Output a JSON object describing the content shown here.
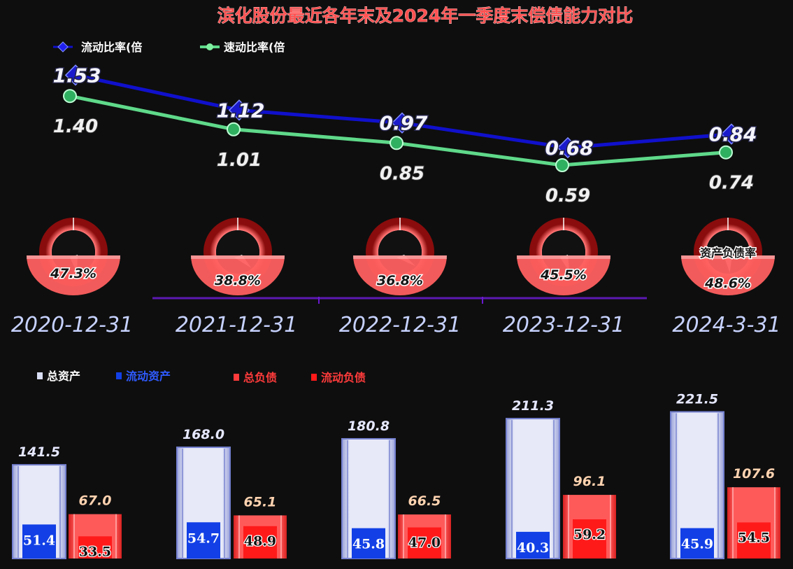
{
  "title": "滨化股份最近各年末及2024年一季度末偿债能力对比",
  "colors": {
    "current_ratio": "#1010cc",
    "quick_ratio": "#5fd98a",
    "total_assets": "#d9ddf3",
    "current_assets": "#1240e6",
    "total_liabilities": "#ff4a4a",
    "current_liabilities": "#ff1a1a",
    "gauge": "#ff5a5a"
  },
  "chart_data": [
    {
      "type": "line",
      "categories": [
        "2020-12-31",
        "2021-12-31",
        "2022-12-31",
        "2023-12-31",
        "2024-3-31"
      ],
      "series": [
        {
          "name": "流动比率(倍",
          "values": [
            1.53,
            1.12,
            0.97,
            0.68,
            0.84
          ]
        },
        {
          "name": "速动比率(倍",
          "values": [
            1.4,
            1.01,
            0.85,
            0.59,
            0.74
          ]
        }
      ]
    },
    {
      "type": "pie",
      "label": "资产负债率",
      "categories": [
        "2020-12-31",
        "2021-12-31",
        "2022-12-31",
        "2023-12-31",
        "2024-3-31"
      ],
      "values": [
        "47.3%",
        "38.8%",
        "36.8%",
        "45.5%",
        "48.6%"
      ],
      "fractions": [
        0.473,
        0.388,
        0.368,
        0.455,
        0.486
      ]
    },
    {
      "type": "bar",
      "categories": [
        "2020-12-31",
        "2021-12-31",
        "2022-12-31",
        "2023-12-31",
        "2024-3-31"
      ],
      "series": [
        {
          "name": "总资产",
          "values": [
            141.5,
            168.0,
            180.8,
            211.3,
            221.5
          ]
        },
        {
          "name": "流动资产",
          "values": [
            51.4,
            54.7,
            45.8,
            40.3,
            45.9
          ]
        },
        {
          "name": "总负债",
          "values": [
            67.0,
            65.1,
            66.5,
            96.1,
            107.6
          ]
        },
        {
          "name": "流动负债",
          "values": [
            33.5,
            48.9,
            47.0,
            59.2,
            54.5
          ]
        }
      ]
    }
  ],
  "labels": {
    "line_current": [
      "1.53",
      "1.12",
      "0.97",
      "0.68",
      "0.84"
    ],
    "line_quick": [
      "1.40",
      "1.01",
      "0.85",
      "0.59",
      "0.74"
    ],
    "total_assets": [
      "141.5",
      "168.0",
      "180.8",
      "211.3",
      "221.5"
    ],
    "current_assets": [
      "51.4",
      "54.7",
      "45.8",
      "40.3",
      "45.9"
    ],
    "total_liabilities": [
      "67.0",
      "65.1",
      "66.5",
      "96.1",
      "107.6"
    ],
    "current_liabilities": [
      "33.5",
      "48.9",
      "47.0",
      "59.2",
      "54.5"
    ]
  }
}
